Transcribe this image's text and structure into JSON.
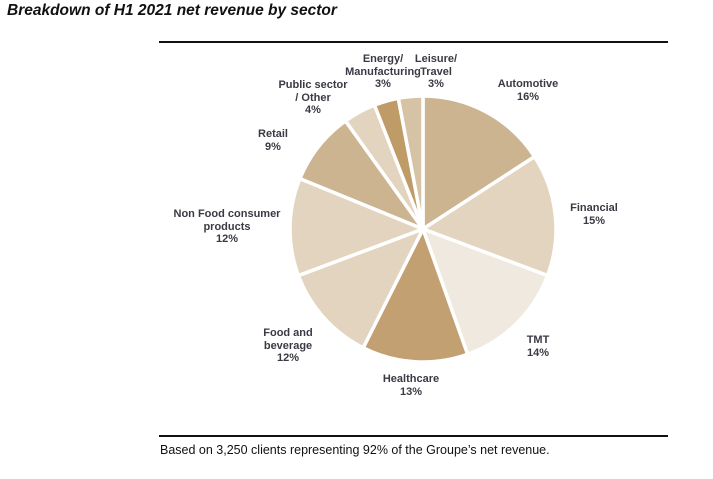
{
  "title": "Breakdown of H1 2021 net revenue by sector",
  "footnote": "Based on 3,250 clients representing 92% of the Groupe’s net revenue.",
  "chart_data": {
    "type": "pie",
    "title": "Breakdown of H1 2021 net revenue by sector",
    "unit": "%",
    "start": "12 o'clock",
    "direction": "clockwise",
    "slices": [
      {
        "label_lines": [
          "Automotive"
        ],
        "label": "Automotive",
        "value": 16,
        "value_label": "16%",
        "color": "#cdb491"
      },
      {
        "label_lines": [
          "Financial"
        ],
        "label": "Financial",
        "value": 15,
        "value_label": "15%",
        "color": "#e3d4bf"
      },
      {
        "label_lines": [
          "TMT"
        ],
        "label": "TMT",
        "value": 14,
        "value_label": "14%",
        "color": "#f0e9df"
      },
      {
        "label_lines": [
          "Healthcare"
        ],
        "label": "Healthcare",
        "value": 13,
        "value_label": "13%",
        "color": "#c3a071"
      },
      {
        "label_lines": [
          "Food and",
          "beverage"
        ],
        "label": "Food and beverage",
        "value": 12,
        "value_label": "12%",
        "color": "#e3d4bf"
      },
      {
        "label_lines": [
          "Non Food consumer",
          "products"
        ],
        "label": "Non Food consumer products",
        "value": 12,
        "value_label": "12%",
        "color": "#e3d4bf"
      },
      {
        "label_lines": [
          "Retail"
        ],
        "label": "Retail",
        "value": 9,
        "value_label": "9%",
        "color": "#cdb491"
      },
      {
        "label_lines": [
          "Public sector",
          "/ Other"
        ],
        "label": "Public sector / Other",
        "value": 4,
        "value_label": "4%",
        "color": "#e3d4bf"
      },
      {
        "label_lines": [
          "Energy/",
          "Manufacturing"
        ],
        "label": "Energy/ Manufacturing",
        "value": 3,
        "value_label": "3%",
        "color": "#bf9b68"
      },
      {
        "label_lines": [
          "Leisure/",
          "Travel"
        ],
        "label": "Leisure/ Travel",
        "value": 3,
        "value_label": "3%",
        "color": "#d6c2a4"
      }
    ]
  }
}
